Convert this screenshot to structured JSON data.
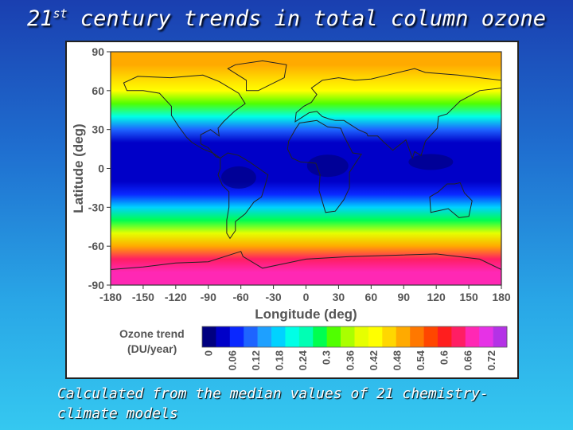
{
  "slide": {
    "title_prefix": "21",
    "title_sup": "st",
    "title_rest": " century trends in total column ozone",
    "caption_line1": "Calculated from the median values of 21 chemistry-",
    "caption_line2": "climate models"
  },
  "chart_data": {
    "type": "heatmap",
    "title": "",
    "xlabel": "Longitude (deg)",
    "ylabel": "Latitude (deg)",
    "xlim": [
      -180,
      180
    ],
    "ylim": [
      -90,
      90
    ],
    "x_ticks": [
      "-180",
      "-150",
      "-120",
      "-90",
      "-60",
      "-30",
      "0",
      "30",
      "60",
      "90",
      "120",
      "150",
      "180"
    ],
    "y_ticks": [
      "90",
      "60",
      "30",
      "0",
      "-30",
      "-60",
      "-90"
    ],
    "colorbar": {
      "label_line1": "Ozone trend",
      "label_line2": "(DU/year)",
      "ticks": [
        "0",
        "0.06",
        "0.12",
        "0.18",
        "0.24",
        "0.3",
        "0.36",
        "0.42",
        "0.48",
        "0.54",
        "0.6",
        "0.66",
        "0.72"
      ],
      "colors": [
        "#000080",
        "#0000c8",
        "#0a28ff",
        "#1e64ff",
        "#1ea0ff",
        "#00d2ff",
        "#00ffe6",
        "#00ffb4",
        "#00ff50",
        "#50ff00",
        "#aaff00",
        "#e6ff00",
        "#ffff00",
        "#ffd700",
        "#ffaa00",
        "#ff7800",
        "#ff4600",
        "#ff1e1e",
        "#ff1e64",
        "#ff28b4",
        "#e632e6",
        "#b432e6"
      ]
    },
    "latitude_profile": {
      "lat": [
        90,
        80,
        70,
        60,
        50,
        40,
        30,
        20,
        10,
        0,
        -10,
        -20,
        -30,
        -40,
        -50,
        -60,
        -70,
        -80,
        -90
      ],
      "trend": [
        0.52,
        0.5,
        0.47,
        0.42,
        0.32,
        0.2,
        0.12,
        0.05,
        0.03,
        0.03,
        0.04,
        0.08,
        0.17,
        0.28,
        0.38,
        0.5,
        0.64,
        0.68,
        0.68
      ]
    }
  }
}
